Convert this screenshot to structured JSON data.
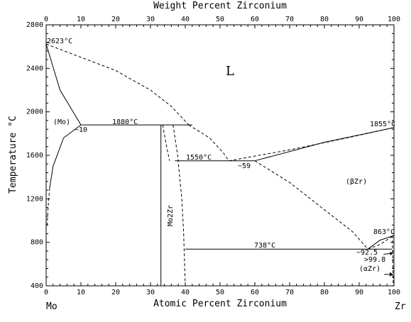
{
  "chart_data": {
    "type": "line",
    "title": "",
    "top_axis": {
      "label": "Weight Percent Zirconium",
      "ticks": [
        "0",
        "10",
        "20",
        "30",
        "40",
        "50",
        "60",
        "70",
        "80",
        "90",
        "100"
      ]
    },
    "bottom_axis": {
      "label": "Atomic Percent Zirconium",
      "ticks": [
        "0",
        "10",
        "20",
        "30",
        "40",
        "50",
        "60",
        "70",
        "80",
        "90",
        "100"
      ],
      "xlim": [
        0,
        100
      ]
    },
    "y_axis": {
      "label": "Temperature °C",
      "ticks": [
        "400",
        "800",
        "1200",
        "1600",
        "2000",
        "2400",
        "2800"
      ],
      "ylim": [
        400,
        2800
      ]
    },
    "left_element": "Mo",
    "right_element": "Zr",
    "phase_labels": {
      "liquid": "L",
      "mo": "(Mo)",
      "beta_zr": "(βZr)",
      "alpha_zr": "(αZr)",
      "compound": "Mo2Zr"
    },
    "annotations": {
      "mo_melt": "2623°C",
      "eutectic1_temp": "1880°C",
      "eutectic1_comp": "~10",
      "eutectic2_temp": "1550°C",
      "eutectic2_comp": "~59",
      "zr_melt": "1855°C",
      "zr_transition": "863°C",
      "eutectoid_temp": "738°C",
      "eutectoid_comp": "~92.5",
      "alpha_solubility": ">99.8"
    },
    "series": [
      {
        "style": "dashed",
        "role": "liquidus-left",
        "points": [
          [
            0,
            2623
          ],
          [
            20,
            2380
          ],
          [
            30,
            2200
          ],
          [
            36,
            2050
          ],
          [
            41,
            1880
          ]
        ]
      },
      {
        "style": "dashed",
        "role": "liquidus-mid",
        "points": [
          [
            41,
            1880
          ],
          [
            47,
            1760
          ],
          [
            51,
            1620
          ],
          [
            52.5,
            1550
          ]
        ]
      },
      {
        "style": "dashed",
        "role": "liquidus-right",
        "points": [
          [
            52.5,
            1550
          ],
          [
            70,
            1650
          ],
          [
            85,
            1750
          ],
          [
            100,
            1855
          ]
        ]
      },
      {
        "style": "solid",
        "role": "solidus-mo",
        "points": [
          [
            0,
            2623
          ],
          [
            4,
            2200
          ],
          [
            10,
            1880
          ]
        ]
      },
      {
        "style": "solid",
        "role": "solvus-mo",
        "points": [
          [
            10,
            1880
          ],
          [
            5,
            1760
          ],
          [
            2,
            1500
          ],
          [
            1,
            1300
          ]
        ]
      },
      {
        "style": "dashed",
        "role": "solvus-mo-low",
        "points": [
          [
            1,
            1300
          ],
          [
            0.5,
            1100
          ],
          [
            0.3,
            950
          ]
        ]
      },
      {
        "style": "dashed",
        "role": "mo2zr-left",
        "points": [
          [
            33.5,
            1880
          ],
          [
            34.5,
            1700
          ],
          [
            35.5,
            1550
          ]
        ]
      },
      {
        "style": "dashed",
        "role": "mo2zr-right",
        "points": [
          [
            36.5,
            1880
          ],
          [
            37.8,
            1600
          ],
          [
            39,
            1200
          ],
          [
            39.5,
            900
          ],
          [
            40,
            400
          ]
        ]
      },
      {
        "style": "solid",
        "role": "compound-line",
        "points": [
          [
            33,
            1880
          ],
          [
            33,
            400
          ]
        ]
      },
      {
        "style": "solid",
        "role": "eutectic-1880",
        "points": [
          [
            10,
            1880
          ],
          [
            42,
            1880
          ]
        ]
      },
      {
        "style": "solid",
        "role": "eutectic-1550",
        "points": [
          [
            37,
            1550
          ],
          [
            60,
            1550
          ]
        ]
      },
      {
        "style": "solid",
        "role": "solidus-betazr",
        "points": [
          [
            60,
            1550
          ],
          [
            80,
            1720
          ],
          [
            100,
            1855
          ]
        ]
      },
      {
        "style": "dashed",
        "role": "betazr-solvus",
        "points": [
          [
            60,
            1550
          ],
          [
            70,
            1350
          ],
          [
            80,
            1100
          ],
          [
            88,
            900
          ],
          [
            92.5,
            738
          ]
        ]
      },
      {
        "style": "solid",
        "role": "eutectoid-738",
        "points": [
          [
            40,
            738
          ],
          [
            99.5,
            738
          ]
        ]
      },
      {
        "style": "solid",
        "role": "alpha-beta-upper",
        "points": [
          [
            92.5,
            738
          ],
          [
            96,
            820
          ],
          [
            100,
            863
          ]
        ]
      },
      {
        "style": "dashed",
        "role": "alpha-beta-lower",
        "points": [
          [
            92.5,
            738
          ],
          [
            96,
            780
          ],
          [
            100,
            863
          ]
        ]
      },
      {
        "style": "dashed",
        "role": "alpha-solvus",
        "points": [
          [
            99.6,
            863
          ],
          [
            99.6,
            738
          ],
          [
            99.7,
            600
          ],
          [
            99.8,
            400
          ]
        ]
      }
    ]
  }
}
